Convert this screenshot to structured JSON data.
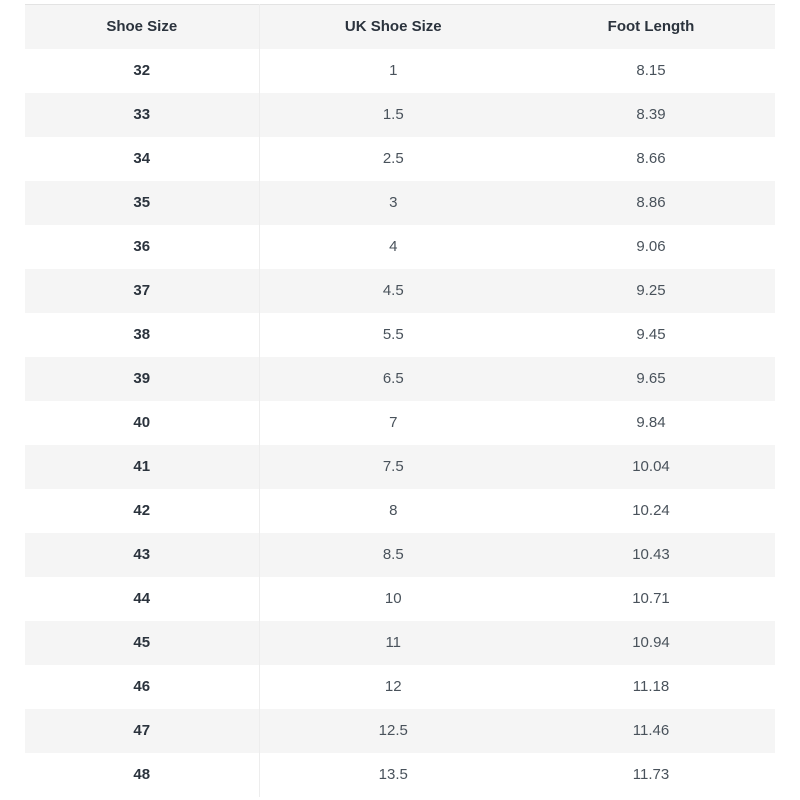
{
  "table": {
    "columns": [
      "Shoe Size",
      "UK Shoe Size",
      "Foot Length"
    ],
    "rows": [
      [
        "32",
        "1",
        "8.15"
      ],
      [
        "33",
        "1.5",
        "8.39"
      ],
      [
        "34",
        "2.5",
        "8.66"
      ],
      [
        "35",
        "3",
        "8.86"
      ],
      [
        "36",
        "4",
        "9.06"
      ],
      [
        "37",
        "4.5",
        "9.25"
      ],
      [
        "38",
        "5.5",
        "9.45"
      ],
      [
        "39",
        "6.5",
        "9.65"
      ],
      [
        "40",
        "7",
        "9.84"
      ],
      [
        "41",
        "7.5",
        "10.04"
      ],
      [
        "42",
        "8",
        "10.24"
      ],
      [
        "43",
        "8.5",
        "10.43"
      ],
      [
        "44",
        "10",
        "10.71"
      ],
      [
        "45",
        "11",
        "10.94"
      ],
      [
        "46",
        "12",
        "11.18"
      ],
      [
        "47",
        "12.5",
        "11.46"
      ],
      [
        "48",
        "13.5",
        "11.73"
      ]
    ],
    "colors": {
      "stripe": "#f5f5f5",
      "divider": "#ededed",
      "top_border": "#e3e3e3",
      "header_text": "#2b333d",
      "cell_text": "#49525b"
    }
  }
}
